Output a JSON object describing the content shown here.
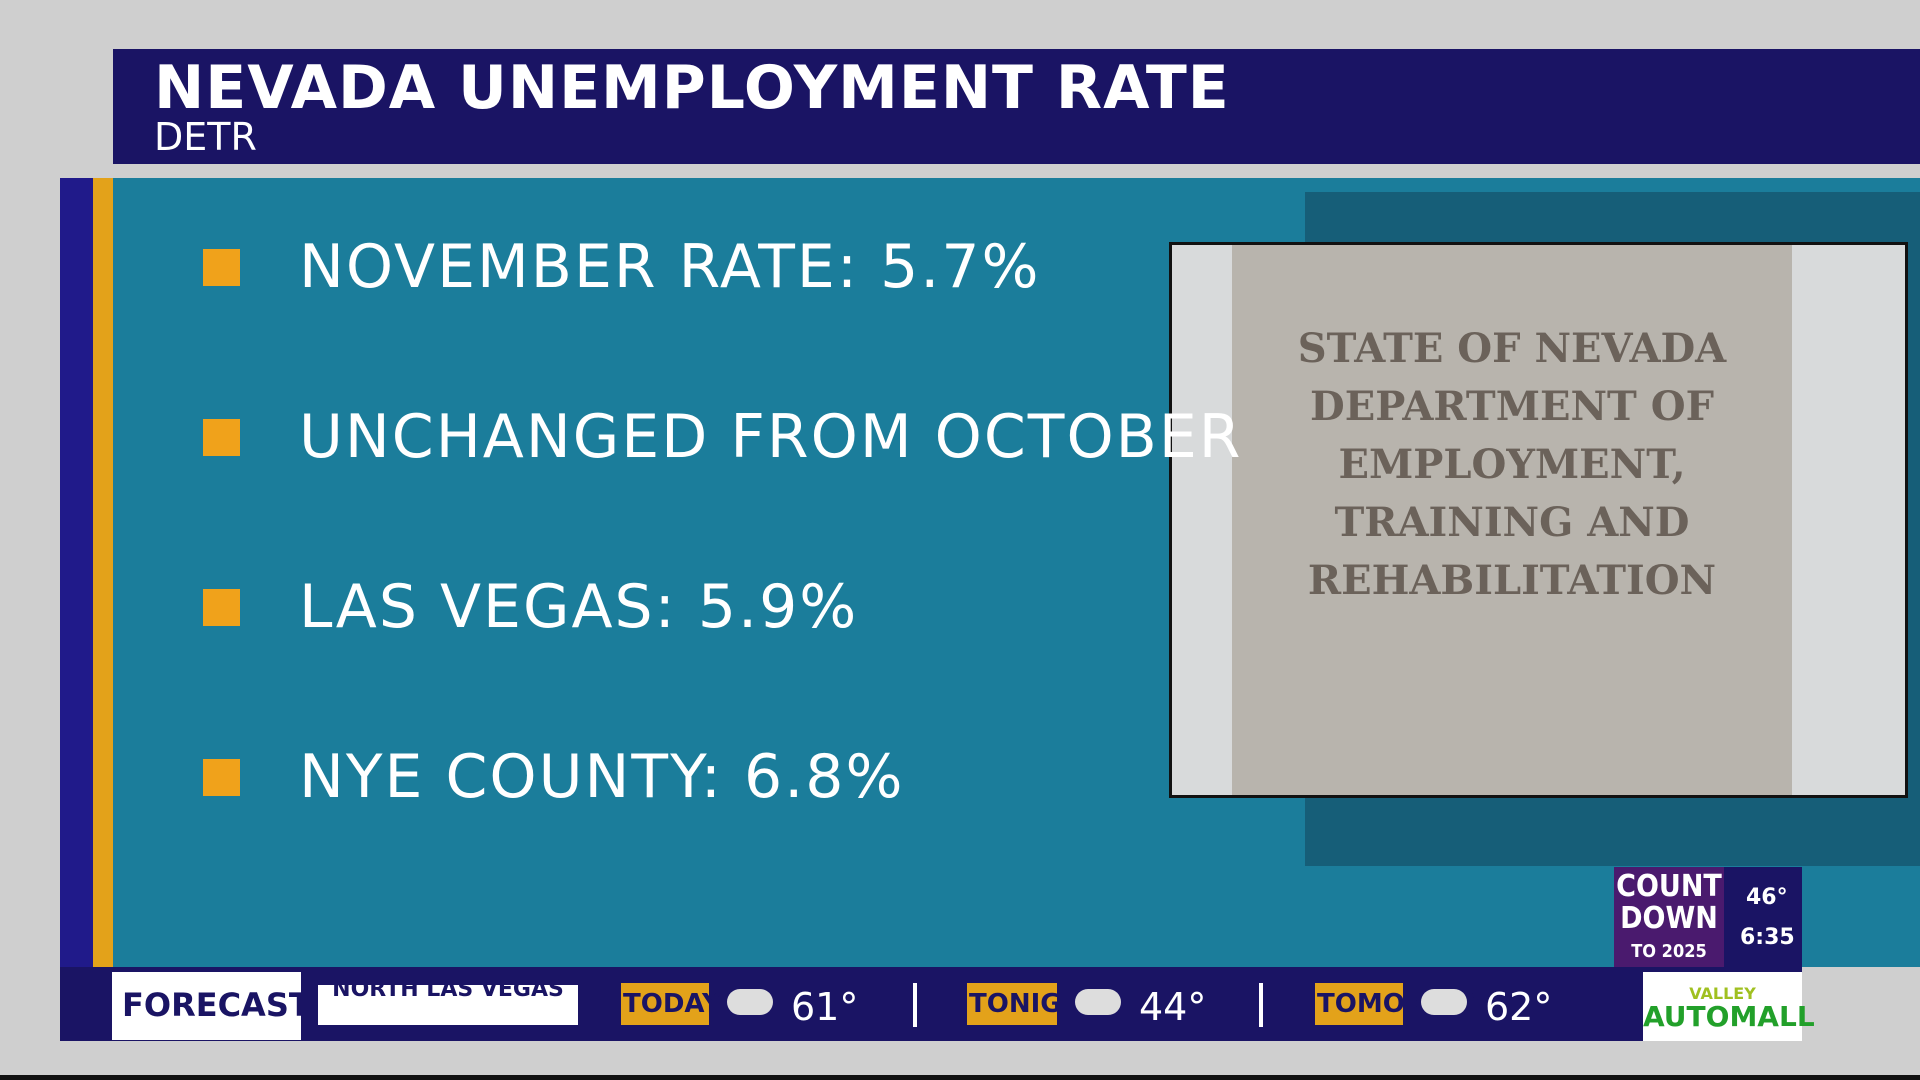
{
  "header": {
    "title": "NEVADA UNEMPLOYMENT RATE",
    "subtitle": "DETR"
  },
  "bullets": [
    "NOVEMBER RATE: 5.7%",
    "UNCHANGED FROM OCTOBER",
    "LAS VEGAS: 5.9%",
    "NYE COUNTY: 6.8%"
  ],
  "photo": {
    "sign_lines": [
      "STATE OF NEVADA",
      "DEPARTMENT OF",
      "EMPLOYMENT,",
      "TRAINING AND",
      "REHABILITATION"
    ]
  },
  "countdown": {
    "line1": "COUNT",
    "line2": "DOWN",
    "line3": "TO 2025",
    "temperature": "46°",
    "time": "6:35"
  },
  "ticker": {
    "label": "FORECAST",
    "location": "NORTH LAS VEGAS",
    "periods": [
      {
        "name": "TODAY",
        "temp": "61°"
      },
      {
        "name": "TONIGHT",
        "temp": "44°"
      },
      {
        "name": "TOMORROW",
        "temp": "62°"
      }
    ],
    "sponsor": {
      "line1": "VALLEY",
      "line2": "AUTOMALL"
    }
  }
}
